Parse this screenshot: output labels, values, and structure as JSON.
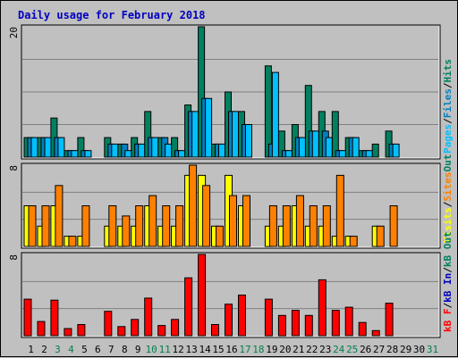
{
  "chart_data": {
    "type": "bar",
    "title": "Daily usage for February 2018",
    "colors": {
      "background": "#c0c0c0",
      "plot_bg": "#c0c0c0",
      "grid": "#808080",
      "title": "#0000c0",
      "hits": "#008060",
      "files": "#0080c0",
      "pages": "#00c0ff",
      "visits": "#ffff00",
      "sites": "#ff8000",
      "kb": "#ff0000",
      "weekday_label": "#000000",
      "weekend_label": "#00804a"
    },
    "x_labels": [
      "1",
      "2",
      "3",
      "4",
      "5",
      "6",
      "7",
      "8",
      "9",
      "10",
      "11",
      "12",
      "13",
      "14",
      "15",
      "16",
      "17",
      "18",
      "19",
      "20",
      "21",
      "22",
      "23",
      "24",
      "25",
      "26",
      "27",
      "28",
      "29",
      "30",
      "31"
    ],
    "weekend_days": [
      3,
      4,
      10,
      11,
      17,
      18,
      24,
      25,
      31
    ],
    "panels": [
      {
        "name": "hits_files_pages",
        "y_max_label": "20",
        "y_max": 20,
        "right_label": [
          {
            "text": "Pages",
            "color": "#00c0ff"
          },
          {
            "text": "/",
            "color": "#000000"
          },
          {
            "text": "Files",
            "color": "#0080c0"
          },
          {
            "text": "/",
            "color": "#000000"
          },
          {
            "text": "Hits",
            "color": "#008060"
          }
        ],
        "series": [
          {
            "name": "Hits",
            "color": "#008060",
            "values": [
              3,
              3,
              6,
              1,
              3,
              0,
              3,
              2,
              3,
              7,
              3,
              3,
              8,
              20,
              2,
              10,
              7,
              0,
              14,
              4,
              5,
              11,
              7,
              7,
              3,
              1,
              2,
              4,
              0,
              0,
              0
            ]
          },
          {
            "name": "Files",
            "color": "#0080c0",
            "values": [
              3,
              3,
              3,
              1,
              1,
              0,
              2,
              2,
              2,
              3,
              3,
              1,
              7,
              9,
              2,
              7,
              5,
              0,
              2,
              1,
              3,
              4,
              4,
              1,
              3,
              1,
              0,
              2,
              0,
              0,
              0
            ]
          },
          {
            "name": "Pages",
            "color": "#00c0ff",
            "values": [
              3,
              3,
              3,
              1,
              1,
              0,
              2,
              1,
              2,
              3,
              2,
              1,
              7,
              9,
              2,
              7,
              5,
              0,
              13,
              1,
              3,
              4,
              3,
              1,
              3,
              1,
              0,
              2,
              0,
              0,
              0
            ]
          }
        ]
      },
      {
        "name": "visits_sites",
        "y_max_label": "8",
        "y_max": 8,
        "right_label": [
          {
            "text": "Visits",
            "color": "#ffff00"
          },
          {
            "text": "/",
            "color": "#000000"
          },
          {
            "text": "Sites",
            "color": "#ff8000"
          },
          {
            "text": "Out",
            "color": "#008060"
          }
        ],
        "series": [
          {
            "name": "Visits",
            "color": "#ffff00",
            "values": [
              4,
              2,
              4,
              1,
              1,
              0,
              2,
              2,
              2,
              4,
              2,
              2,
              7,
              7,
              2,
              7,
              4,
              0,
              2,
              2,
              4,
              2,
              2,
              1,
              1,
              0,
              2,
              0,
              0,
              0,
              0
            ]
          },
          {
            "name": "Sites",
            "color": "#ff8000",
            "values": [
              4,
              4,
              6,
              1,
              4,
              0,
              4,
              3,
              4,
              5,
              4,
              4,
              8,
              6,
              2,
              5,
              5,
              0,
              4,
              4,
              5,
              4,
              4,
              7,
              1,
              0,
              2,
              4,
              0,
              0,
              0
            ]
          }
        ]
      },
      {
        "name": "kbytes",
        "y_max_label": "8",
        "y_max": 8,
        "right_label": [
          {
            "text": "kB F",
            "color": "#ff0000"
          },
          {
            "text": "/",
            "color": "#000000"
          },
          {
            "text": "kB In",
            "color": "#0000c0"
          },
          {
            "text": "/",
            "color": "#000000"
          },
          {
            "text": "kB Out",
            "color": "#008060"
          }
        ],
        "series": [
          {
            "name": "kB F",
            "color": "#ff0000",
            "values": [
              3.6,
              1.4,
              3.5,
              0.7,
              1.1,
              0,
              2.4,
              0.9,
              1.6,
              3.7,
              1.0,
              1.6,
              5.7,
              8.0,
              1.1,
              3.1,
              4.0,
              0,
              3.6,
              2.0,
              2.5,
              2.0,
              5.5,
              2.5,
              2.8,
              1.3,
              0.5,
              3.2,
              0,
              0,
              0
            ]
          }
        ]
      }
    ]
  }
}
